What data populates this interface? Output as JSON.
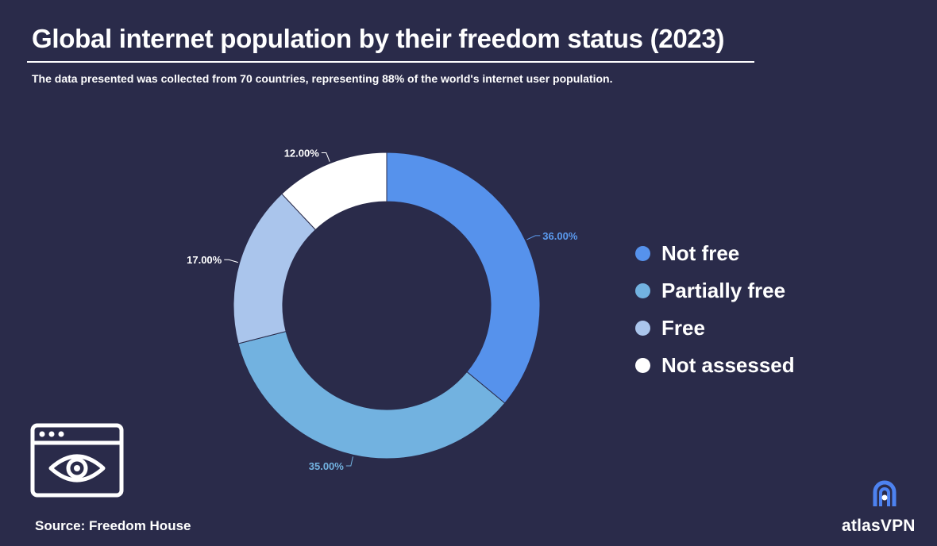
{
  "header": {
    "title": "Global internet population by their freedom status (2023)",
    "subtitle": "The data presented was collected from 70 countries, representing 88% of the world's internet user population."
  },
  "chart_data": {
    "type": "pie",
    "donut": true,
    "categories": [
      "Not free",
      "Partially free",
      "Free",
      "Not assessed"
    ],
    "values": [
      36,
      35,
      17,
      12
    ],
    "value_labels": [
      "36.00%",
      "35.00%",
      "17.00%",
      "12.00%"
    ],
    "colors": [
      "#5692ec",
      "#72b2e0",
      "#aac5ec",
      "#ffffff"
    ],
    "label_colors": [
      "#5b9aee",
      "#72b2e0",
      "#ffffff",
      "#ffffff"
    ],
    "legend_position": "right"
  },
  "footer": {
    "source": "Source: Freedom House",
    "brand": "atlasVPN"
  },
  "icons": {
    "illustration": "browser-eye-icon",
    "logo": "atlasvpn-logo-icon"
  }
}
